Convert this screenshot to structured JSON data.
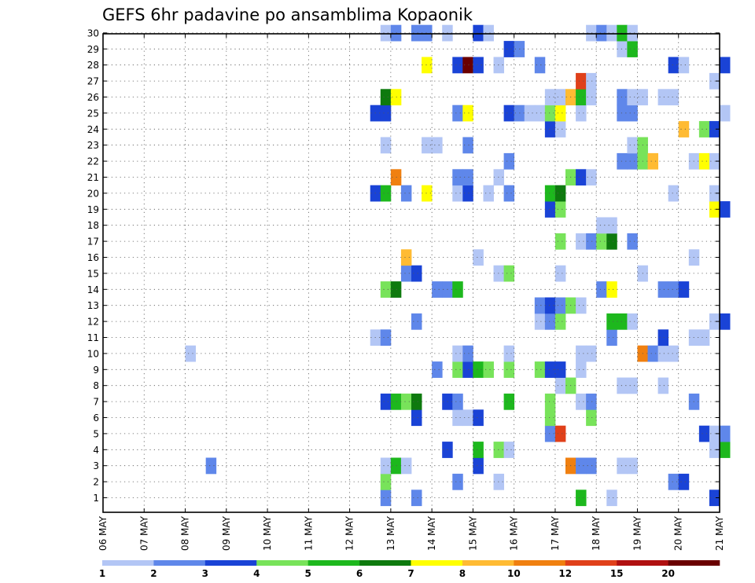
{
  "chart_data": {
    "type": "heatmap",
    "title": "GEFS 6hr padavine po ansamblima Kopaonik",
    "xlabel": "",
    "ylabel": "",
    "x_ticks": [
      "06 MAY",
      "07 MAY",
      "08 MAY",
      "09 MAY",
      "10 MAY",
      "11 MAY",
      "12 MAY",
      "13 MAY",
      "14 MAY",
      "15 MAY",
      "16 MAY",
      "17 MAY",
      "18 MAY",
      "19 MAY",
      "20 MAY",
      "21 MAY"
    ],
    "x_range_days": [
      0,
      15
    ],
    "y_members": [
      1,
      30
    ],
    "y_ticks": [
      1,
      2,
      3,
      4,
      5,
      6,
      7,
      8,
      9,
      10,
      11,
      12,
      13,
      14,
      15,
      16,
      17,
      18,
      19,
      20,
      21,
      22,
      23,
      24,
      25,
      26,
      27,
      28,
      29,
      30
    ],
    "grid": true,
    "colorbar": {
      "labels": [
        "1",
        "2",
        "3",
        "4",
        "5",
        "6",
        "7",
        "8",
        "10",
        "12",
        "15",
        "20"
      ],
      "colors": [
        "#b3c6f5",
        "#5f87ea",
        "#1a43d6",
        "#78e35a",
        "#1db81d",
        "#0e7a0e",
        "#ffff00",
        "#ffbb33",
        "#f08010",
        "#e0401a",
        "#b01010",
        "#6a0000"
      ]
    },
    "cells": [
      [
        1,
        6.75,
        1
      ],
      [
        1,
        7.5,
        1
      ],
      [
        1,
        11.5,
        4
      ],
      [
        1,
        12.25,
        0
      ],
      [
        1,
        14.75,
        2
      ],
      [
        2,
        6.75,
        3
      ],
      [
        2,
        8.5,
        1
      ],
      [
        2,
        9.5,
        0
      ],
      [
        2,
        13.75,
        1
      ],
      [
        2,
        14,
        2
      ],
      [
        3,
        2.5,
        1
      ],
      [
        3,
        6.75,
        0
      ],
      [
        3,
        7,
        4
      ],
      [
        3,
        7.25,
        0
      ],
      [
        3,
        9,
        2
      ],
      [
        3,
        11.25,
        8
      ],
      [
        3,
        11.5,
        1
      ],
      [
        3,
        11.75,
        1
      ],
      [
        3,
        12.5,
        0
      ],
      [
        3,
        12.75,
        0
      ],
      [
        4,
        8.25,
        2
      ],
      [
        4,
        9,
        4
      ],
      [
        4,
        9.5,
        3
      ],
      [
        4,
        9.75,
        0
      ],
      [
        4,
        14.75,
        0
      ],
      [
        4,
        15,
        4
      ],
      [
        5,
        10.75,
        1
      ],
      [
        5,
        11,
        9
      ],
      [
        5,
        14.5,
        2
      ],
      [
        5,
        14.75,
        0
      ],
      [
        5,
        15,
        1
      ],
      [
        6,
        7.5,
        2
      ],
      [
        6,
        8.5,
        0
      ],
      [
        6,
        8.75,
        0
      ],
      [
        6,
        9,
        2
      ],
      [
        6,
        10.75,
        3
      ],
      [
        6,
        11.75,
        3
      ],
      [
        7,
        6.75,
        2
      ],
      [
        7,
        7,
        4
      ],
      [
        7,
        7.25,
        3
      ],
      [
        7,
        7.5,
        5
      ],
      [
        7,
        8.25,
        2
      ],
      [
        7,
        8.5,
        1
      ],
      [
        7,
        9.75,
        4
      ],
      [
        7,
        10.75,
        3
      ],
      [
        7,
        11.5,
        0
      ],
      [
        7,
        11.75,
        1
      ],
      [
        7,
        14.25,
        1
      ],
      [
        8,
        11,
        0
      ],
      [
        8,
        11.25,
        3
      ],
      [
        8,
        12.5,
        0
      ],
      [
        8,
        12.75,
        0
      ],
      [
        8,
        13.5,
        0
      ],
      [
        9,
        8,
        1
      ],
      [
        9,
        8.5,
        3
      ],
      [
        9,
        8.75,
        2
      ],
      [
        9,
        9,
        4
      ],
      [
        9,
        9.25,
        3
      ],
      [
        9,
        9.75,
        3
      ],
      [
        9,
        10.5,
        3
      ],
      [
        9,
        10.75,
        2
      ],
      [
        9,
        11,
        2
      ],
      [
        9,
        11.5,
        0
      ],
      [
        10,
        2,
        0
      ],
      [
        10,
        8.5,
        0
      ],
      [
        10,
        8.75,
        1
      ],
      [
        10,
        9.75,
        0
      ],
      [
        10,
        11.5,
        0
      ],
      [
        10,
        11.75,
        0
      ],
      [
        10,
        13,
        8
      ],
      [
        10,
        13.25,
        1
      ],
      [
        10,
        13.5,
        0
      ],
      [
        10,
        13.75,
        0
      ],
      [
        11,
        6.5,
        0
      ],
      [
        11,
        6.75,
        1
      ],
      [
        11,
        12.25,
        1
      ],
      [
        11,
        13.5,
        2
      ],
      [
        11,
        14.25,
        0
      ],
      [
        11,
        14.5,
        0
      ],
      [
        12,
        7.5,
        1
      ],
      [
        12,
        10.5,
        0
      ],
      [
        12,
        10.75,
        1
      ],
      [
        12,
        11,
        3
      ],
      [
        12,
        12.25,
        4
      ],
      [
        12,
        12.5,
        4
      ],
      [
        12,
        12.75,
        0
      ],
      [
        12,
        14.75,
        0
      ],
      [
        12,
        15,
        2
      ],
      [
        13,
        10.5,
        1
      ],
      [
        13,
        10.75,
        2
      ],
      [
        13,
        11,
        1
      ],
      [
        13,
        11.25,
        3
      ],
      [
        13,
        11.5,
        0
      ],
      [
        14,
        6.75,
        3
      ],
      [
        14,
        7,
        5
      ],
      [
        14,
        8,
        1
      ],
      [
        14,
        8.25,
        1
      ],
      [
        14,
        8.5,
        4
      ],
      [
        14,
        12,
        1
      ],
      [
        14,
        12.25,
        6
      ],
      [
        14,
        13.5,
        1
      ],
      [
        14,
        13.75,
        1
      ],
      [
        14,
        14,
        2
      ],
      [
        15,
        7.25,
        1
      ],
      [
        15,
        7.5,
        2
      ],
      [
        15,
        9.5,
        0
      ],
      [
        15,
        9.75,
        3
      ],
      [
        15,
        11,
        0
      ],
      [
        15,
        13,
        0
      ],
      [
        16,
        7.25,
        7
      ],
      [
        16,
        9,
        0
      ],
      [
        16,
        14.25,
        0
      ],
      [
        17,
        11,
        3
      ],
      [
        17,
        11.5,
        0
      ],
      [
        17,
        11.75,
        1
      ],
      [
        17,
        12,
        3
      ],
      [
        17,
        12.25,
        5
      ],
      [
        17,
        12.75,
        1
      ],
      [
        18,
        12,
        0
      ],
      [
        18,
        12.25,
        0
      ],
      [
        19,
        10.75,
        2
      ],
      [
        19,
        11,
        3
      ],
      [
        19,
        14.75,
        6
      ],
      [
        19,
        15,
        2
      ],
      [
        20,
        6.5,
        2
      ],
      [
        20,
        6.75,
        4
      ],
      [
        20,
        7.25,
        1
      ],
      [
        20,
        7.75,
        6
      ],
      [
        20,
        8.5,
        0
      ],
      [
        20,
        8.75,
        2
      ],
      [
        20,
        9.25,
        0
      ],
      [
        20,
        9.75,
        1
      ],
      [
        20,
        10.75,
        4
      ],
      [
        20,
        11,
        5
      ],
      [
        20,
        13.75,
        0
      ],
      [
        20,
        14.75,
        0
      ],
      [
        21,
        7,
        8
      ],
      [
        21,
        8.5,
        1
      ],
      [
        21,
        8.75,
        1
      ],
      [
        21,
        9.5,
        0
      ],
      [
        21,
        11.25,
        3
      ],
      [
        21,
        11.5,
        2
      ],
      [
        21,
        11.75,
        0
      ],
      [
        22,
        9.75,
        1
      ],
      [
        22,
        12.5,
        1
      ],
      [
        22,
        12.75,
        1
      ],
      [
        22,
        13,
        3
      ],
      [
        22,
        13.25,
        7
      ],
      [
        22,
        14.25,
        0
      ],
      [
        22,
        14.5,
        6
      ],
      [
        22,
        14.75,
        0
      ],
      [
        23,
        6.75,
        0
      ],
      [
        23,
        7.75,
        0
      ],
      [
        23,
        8,
        0
      ],
      [
        23,
        8.75,
        1
      ],
      [
        23,
        12.75,
        0
      ],
      [
        23,
        13,
        3
      ],
      [
        24,
        10.75,
        2
      ],
      [
        24,
        11,
        0
      ],
      [
        24,
        14,
        7
      ],
      [
        24,
        14.5,
        3
      ],
      [
        24,
        14.75,
        2
      ],
      [
        25,
        6.5,
        2
      ],
      [
        25,
        6.75,
        2
      ],
      [
        25,
        8.5,
        1
      ],
      [
        25,
        8.75,
        6
      ],
      [
        25,
        9.75,
        2
      ],
      [
        25,
        10,
        1
      ],
      [
        25,
        10.25,
        0
      ],
      [
        25,
        10.5,
        0
      ],
      [
        25,
        10.75,
        3
      ],
      [
        25,
        11,
        6
      ],
      [
        25,
        11.5,
        0
      ],
      [
        25,
        12.5,
        1
      ],
      [
        25,
        12.75,
        1
      ],
      [
        25,
        15,
        0
      ],
      [
        26,
        6.75,
        5
      ],
      [
        26,
        7,
        6
      ],
      [
        26,
        10.75,
        0
      ],
      [
        26,
        11,
        0
      ],
      [
        26,
        11.25,
        7
      ],
      [
        26,
        11.5,
        4
      ],
      [
        26,
        11.75,
        0
      ],
      [
        26,
        12.5,
        1
      ],
      [
        26,
        12.75,
        0
      ],
      [
        26,
        13,
        0
      ],
      [
        26,
        13.5,
        0
      ],
      [
        26,
        13.75,
        0
      ],
      [
        27,
        11.5,
        9
      ],
      [
        27,
        11.75,
        0
      ],
      [
        27,
        14.75,
        0
      ],
      [
        28,
        7.75,
        6
      ],
      [
        28,
        8.5,
        2
      ],
      [
        28,
        8.75,
        11
      ],
      [
        28,
        9,
        2
      ],
      [
        28,
        9.5,
        0
      ],
      [
        28,
        10.5,
        1
      ],
      [
        28,
        13.75,
        2
      ],
      [
        28,
        14,
        0
      ],
      [
        28,
        15,
        2
      ],
      [
        29,
        9.75,
        2
      ],
      [
        29,
        10,
        1
      ],
      [
        29,
        12.5,
        0
      ],
      [
        29,
        12.75,
        4
      ],
      [
        30,
        6.75,
        0
      ],
      [
        30,
        7,
        1
      ],
      [
        30,
        7.5,
        1
      ],
      [
        30,
        7.75,
        1
      ],
      [
        30,
        8.25,
        0
      ],
      [
        30,
        9,
        2
      ],
      [
        30,
        9.25,
        0
      ],
      [
        30,
        11.75,
        0
      ],
      [
        30,
        12,
        1
      ],
      [
        30,
        12.25,
        0
      ],
      [
        30,
        12.5,
        4
      ],
      [
        30,
        12.75,
        0
      ]
    ]
  }
}
